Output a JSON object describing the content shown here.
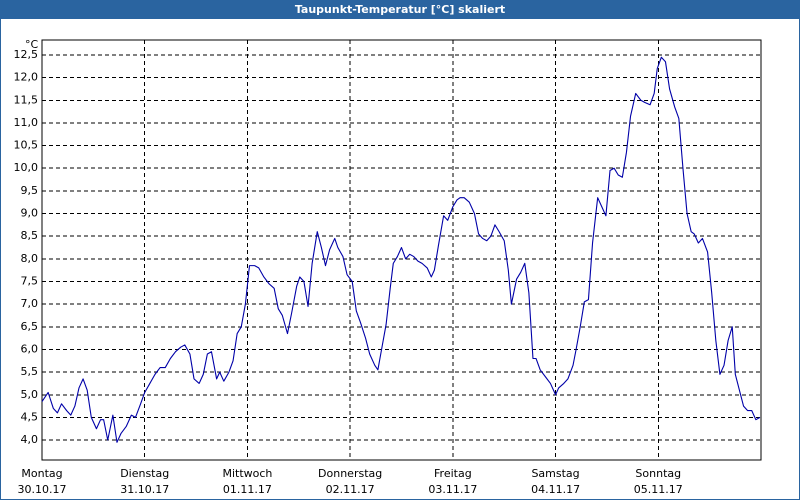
{
  "chart_data": {
    "type": "line",
    "title": "Taupunkt-Temperatur [°C] skaliert",
    "ylabel": "°C",
    "color": "#0000a8",
    "grid": true,
    "xlim": [
      0,
      7
    ],
    "ylim": [
      3.56,
      12.83
    ],
    "xticks": [
      {
        "value": 0,
        "label": "Montag",
        "date": "30.10.17"
      },
      {
        "value": 1,
        "label": "Dienstag",
        "date": "31.10.17"
      },
      {
        "value": 2,
        "label": "Mittwoch",
        "date": "01.11.17"
      },
      {
        "value": 3,
        "label": "Donnerstag",
        "date": "02.11.17"
      },
      {
        "value": 4,
        "label": "Freitag",
        "date": "03.11.17"
      },
      {
        "value": 5,
        "label": "Samstag",
        "date": "04.11.17"
      },
      {
        "value": 6,
        "label": "Sonntag",
        "date": "05.11.17"
      }
    ],
    "yticks": [
      {
        "value": 4,
        "label": "4,0"
      },
      {
        "value": 4.5,
        "label": "4,5"
      },
      {
        "value": 5,
        "label": "5,0"
      },
      {
        "value": 5.5,
        "label": "5,5"
      },
      {
        "value": 6,
        "label": "6,0"
      },
      {
        "value": 6.5,
        "label": "6,5"
      },
      {
        "value": 7,
        "label": "7,0"
      },
      {
        "value": 7.5,
        "label": "7,5"
      },
      {
        "value": 8,
        "label": "8,0"
      },
      {
        "value": 8.5,
        "label": "8,5"
      },
      {
        "value": 9,
        "label": "9,0"
      },
      {
        "value": 9.5,
        "label": "9,5"
      },
      {
        "value": 10,
        "label": "10,0"
      },
      {
        "value": 10.5,
        "label": "10,5"
      },
      {
        "value": 11,
        "label": "11,0"
      },
      {
        "value": 11.5,
        "label": "11,5"
      },
      {
        "value": 12,
        "label": "12,0"
      },
      {
        "value": 12.5,
        "label": "12,5"
      }
    ],
    "x": [
      0,
      0.06,
      0.11,
      0.15,
      0.19,
      0.24,
      0.28,
      0.32,
      0.36,
      0.4,
      0.44,
      0.48,
      0.53,
      0.57,
      0.6,
      0.64,
      0.69,
      0.73,
      0.77,
      0.82,
      0.87,
      0.91,
      0.96,
      1.0,
      1.05,
      1.1,
      1.15,
      1.2,
      1.25,
      1.3,
      1.35,
      1.39,
      1.44,
      1.48,
      1.53,
      1.57,
      1.61,
      1.65,
      1.7,
      1.73,
      1.77,
      1.82,
      1.86,
      1.9,
      1.94,
      1.98,
      2.02,
      2.07,
      2.11,
      2.16,
      2.21,
      2.26,
      2.3,
      2.34,
      2.39,
      2.43,
      2.48,
      2.51,
      2.55,
      2.59,
      2.63,
      2.68,
      2.72,
      2.76,
      2.8,
      2.85,
      2.88,
      2.93,
      2.97,
      3.02,
      3.06,
      3.1,
      3.15,
      3.19,
      3.24,
      3.27,
      3.31,
      3.35,
      3.39,
      3.42,
      3.46,
      3.5,
      3.54,
      3.58,
      3.62,
      3.66,
      3.7,
      3.75,
      3.79,
      3.82,
      3.86,
      3.91,
      3.95,
      4.0,
      4.04,
      4.07,
      4.11,
      4.16,
      4.21,
      4.25,
      4.29,
      4.33,
      4.37,
      4.41,
      4.45,
      4.5,
      4.54,
      4.57,
      4.62,
      4.66,
      4.7,
      4.74,
      4.78,
      4.81,
      4.85,
      4.9,
      4.95,
      5.0,
      5.03,
      5.08,
      5.12,
      5.17,
      5.2,
      5.24,
      5.28,
      5.32,
      5.36,
      5.41,
      5.45,
      5.49,
      5.53,
      5.57,
      5.61,
      5.65,
      5.69,
      5.73,
      5.78,
      5.83,
      5.87,
      5.92,
      5.96,
      5.99,
      6.03,
      6.07,
      6.11,
      6.16,
      6.2,
      6.24,
      6.28,
      6.32,
      6.35,
      6.39,
      6.43,
      6.48,
      6.52,
      6.56,
      6.6,
      6.64,
      6.68,
      6.72,
      6.75,
      6.79,
      6.83,
      6.87,
      6.91,
      6.95,
      6.99
    ],
    "values": [
      4.85,
      5.05,
      4.7,
      4.6,
      4.8,
      4.65,
      4.55,
      4.75,
      5.15,
      5.35,
      5.1,
      4.5,
      4.25,
      4.45,
      4.45,
      4.0,
      4.55,
      3.95,
      4.15,
      4.3,
      4.55,
      4.5,
      4.8,
      5.05,
      5.25,
      5.45,
      5.6,
      5.6,
      5.8,
      5.95,
      6.05,
      6.1,
      5.9,
      5.35,
      5.25,
      5.45,
      5.9,
      5.95,
      5.35,
      5.5,
      5.3,
      5.5,
      5.75,
      6.35,
      6.5,
      7.0,
      7.85,
      7.85,
      7.8,
      7.6,
      7.45,
      7.35,
      6.9,
      6.75,
      6.35,
      6.8,
      7.4,
      7.6,
      7.5,
      6.95,
      7.9,
      8.6,
      8.25,
      7.85,
      8.2,
      8.45,
      8.25,
      8.05,
      7.65,
      7.5,
      6.85,
      6.6,
      6.25,
      5.9,
      5.65,
      5.55,
      6.05,
      6.55,
      7.35,
      7.9,
      8.05,
      8.25,
      8.0,
      8.1,
      8.05,
      7.95,
      7.9,
      7.8,
      7.6,
      7.75,
      8.3,
      8.95,
      8.85,
      9.15,
      9.3,
      9.35,
      9.35,
      9.25,
      9.0,
      8.55,
      8.45,
      8.4,
      8.5,
      8.75,
      8.6,
      8.4,
      7.75,
      7.0,
      7.55,
      7.7,
      7.9,
      7.25,
      5.8,
      5.8,
      5.55,
      5.4,
      5.25,
      5.0,
      5.15,
      5.25,
      5.35,
      5.65,
      6.0,
      6.5,
      7.05,
      7.1,
      8.35,
      9.35,
      9.15,
      8.95,
      9.95,
      10.0,
      9.85,
      9.8,
      10.35,
      11.15,
      11.65,
      11.5,
      11.45,
      11.4,
      11.65,
      12.2,
      12.45,
      12.35,
      11.75,
      11.35,
      11.1,
      10.0,
      9.0,
      8.6,
      8.55,
      8.35,
      8.45,
      8.15,
      7.25,
      6.2,
      5.45,
      5.65,
      6.2,
      6.5,
      5.45,
      5.1,
      4.75,
      4.65,
      4.65,
      4.45,
      4.5
    ]
  }
}
